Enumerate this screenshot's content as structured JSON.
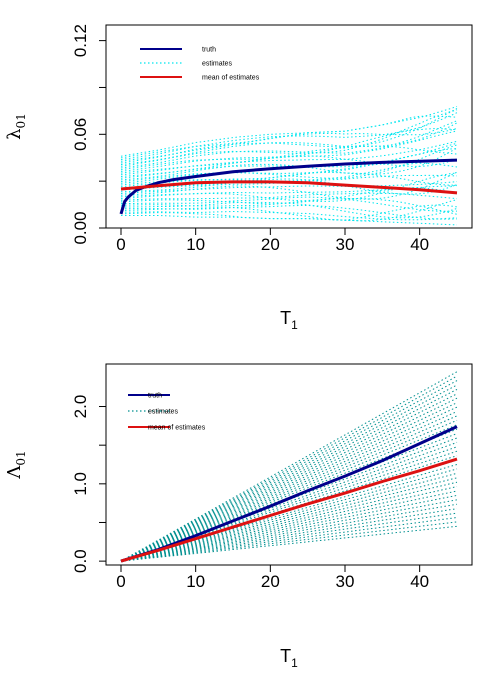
{
  "colors": {
    "truth": "#00008B",
    "mean": "#DD1111",
    "estimates_top": "#00E5EE",
    "estimates_bottom": "#009090"
  },
  "chart_data": [
    {
      "type": "line",
      "ylabel_symbol": "λ",
      "ylabel_sub": "01",
      "xlabel_main": "T",
      "xlabel_sub": "1",
      "xlim": [
        0,
        45
      ],
      "ylim": [
        0,
        0.13
      ],
      "x_ticks": [
        0,
        10,
        20,
        30,
        40
      ],
      "y_ticks": [
        0.0,
        0.06,
        0.12
      ],
      "y_tick_labels": [
        "0.00",
        "0.06",
        "0.12"
      ],
      "legend": [
        "truth",
        "estimates",
        "mean of estimates"
      ],
      "legend_position": "top-left",
      "series": [
        {
          "name": "truth",
          "x": [
            0,
            0.5,
            1,
            2,
            3,
            5,
            7,
            10,
            15,
            20,
            25,
            30,
            35,
            40,
            45
          ],
          "values": [
            0.009,
            0.017,
            0.02,
            0.024,
            0.026,
            0.029,
            0.031,
            0.033,
            0.036,
            0.038,
            0.0395,
            0.041,
            0.042,
            0.0428,
            0.0435
          ]
        },
        {
          "name": "mean of estimates",
          "x": [
            0,
            5,
            10,
            15,
            20,
            25,
            30,
            35,
            40,
            45
          ],
          "values": [
            0.025,
            0.027,
            0.029,
            0.0295,
            0.0295,
            0.029,
            0.0275,
            0.026,
            0.0245,
            0.0225
          ]
        }
      ],
      "estimates_band": {
        "x": [
          0,
          5,
          10,
          15,
          20,
          25,
          30,
          35,
          40,
          45
        ],
        "low": [
          0.008,
          0.008,
          0.007,
          0.007,
          0.006,
          0.006,
          0.005,
          0.004,
          0.003,
          0.002
        ],
        "high": [
          0.046,
          0.05,
          0.055,
          0.058,
          0.06,
          0.061,
          0.062,
          0.066,
          0.072,
          0.08
        ]
      }
    },
    {
      "type": "line",
      "ylabel_symbol": "Λ",
      "ylabel_sub": "01",
      "xlabel_main": "T",
      "xlabel_sub": "1",
      "xlim": [
        0,
        45
      ],
      "ylim": [
        -0.05,
        2.55
      ],
      "x_ticks": [
        0,
        10,
        20,
        30,
        40
      ],
      "y_ticks": [
        0.0,
        1.0,
        2.0
      ],
      "y_tick_labels": [
        "0.0",
        "1.0",
        "2.0"
      ],
      "legend": [
        "truth",
        "estimates",
        "mean of estimates"
      ],
      "legend_position": "top-left",
      "series": [
        {
          "name": "truth",
          "x": [
            0,
            5,
            10,
            15,
            20,
            25,
            30,
            35,
            40,
            45
          ],
          "values": [
            0.0,
            0.15,
            0.33,
            0.52,
            0.71,
            0.91,
            1.1,
            1.3,
            1.52,
            1.74
          ]
        },
        {
          "name": "mean of estimates",
          "x": [
            0,
            5,
            10,
            15,
            20,
            25,
            30,
            35,
            40,
            45
          ],
          "values": [
            0.0,
            0.14,
            0.29,
            0.44,
            0.59,
            0.74,
            0.88,
            1.03,
            1.17,
            1.32
          ]
        }
      ],
      "estimates_band": {
        "x": [
          0,
          45
        ],
        "low": [
          0.0,
          0.45
        ],
        "high": [
          0.0,
          2.45
        ]
      }
    }
  ]
}
